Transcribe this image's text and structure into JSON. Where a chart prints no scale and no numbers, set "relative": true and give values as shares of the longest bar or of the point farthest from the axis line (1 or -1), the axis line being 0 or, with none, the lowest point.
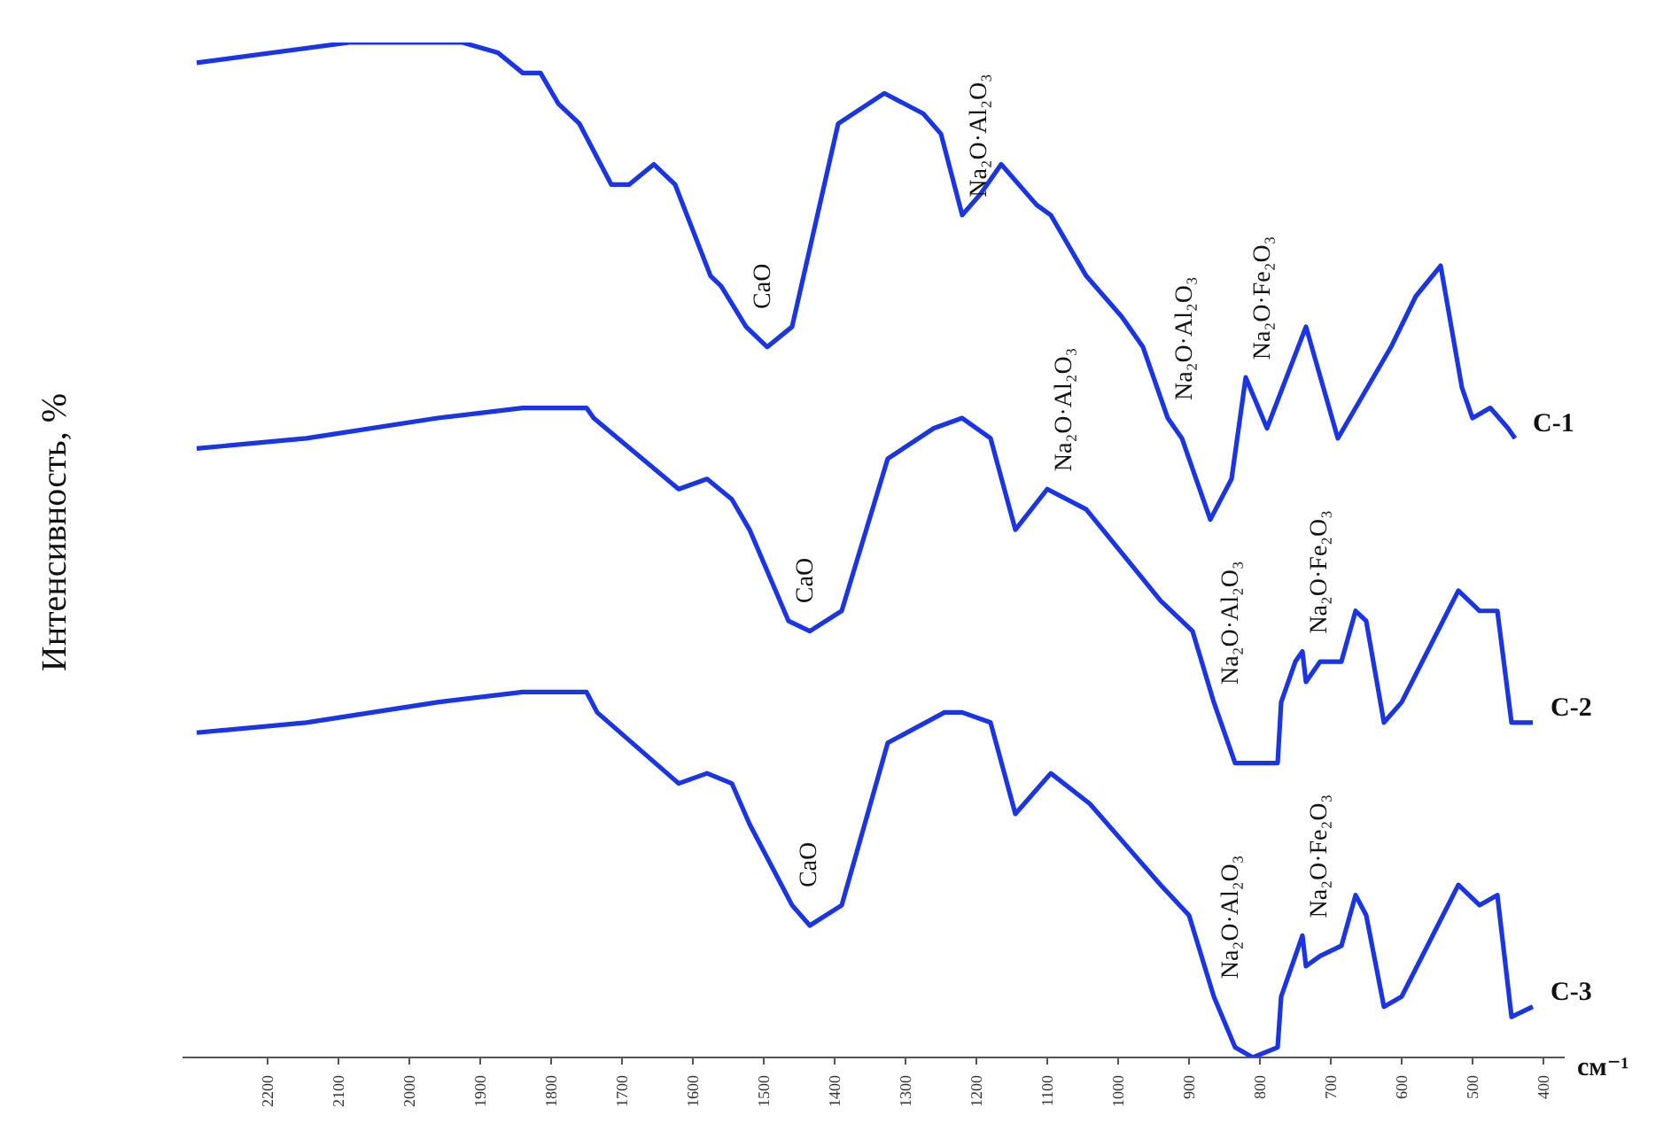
{
  "chart_data": {
    "type": "line",
    "relative": true,
    "ylabel": "Интенсивность, %",
    "xlabel": "см⁻¹",
    "xlim": [
      2320,
      370
    ],
    "xticks": [
      2200,
      2100,
      2000,
      1900,
      1800,
      1700,
      1600,
      1500,
      1400,
      1300,
      1200,
      1100,
      1000,
      900,
      800,
      700,
      600,
      500,
      400
    ],
    "grid": false,
    "legend": false,
    "marker": "none",
    "line_style": "solid",
    "series": [
      {
        "name": "C-1",
        "color": "#1a35e6",
        "x": [
          2300,
          2085,
          1925,
          1875,
          1840,
          1815,
          1790,
          1760,
          1715,
          1690,
          1655,
          1625,
          1575,
          1560,
          1525,
          1495,
          1460,
          1395,
          1330,
          1275,
          1250,
          1220,
          1195,
          1165,
          1115,
          1095,
          1045,
          995,
          965,
          930,
          910,
          890,
          870,
          840,
          820,
          790,
          735,
          690,
          615,
          580,
          545,
          515,
          500,
          475,
          450,
          440
        ],
        "values": [
          0.98,
          1.0,
          1.0,
          0.99,
          0.97,
          0.97,
          0.94,
          0.92,
          0.86,
          0.86,
          0.88,
          0.86,
          0.77,
          0.76,
          0.72,
          0.7,
          0.72,
          0.92,
          0.95,
          0.93,
          0.91,
          0.83,
          0.85,
          0.88,
          0.84,
          0.83,
          0.77,
          0.73,
          0.7,
          0.63,
          0.61,
          0.57,
          0.53,
          0.57,
          0.67,
          0.62,
          0.72,
          0.61,
          0.7,
          0.75,
          0.78,
          0.66,
          0.63,
          0.64,
          0.62,
          0.61
        ]
      },
      {
        "name": "C-2",
        "color": "#1a35e6",
        "x": [
          2300,
          2145,
          1960,
          1840,
          1750,
          1740,
          1620,
          1580,
          1545,
          1520,
          1465,
          1435,
          1390,
          1325,
          1260,
          1220,
          1180,
          1145,
          1100,
          1045,
          940,
          895,
          865,
          835,
          775,
          770,
          750,
          740,
          735,
          715,
          685,
          665,
          650,
          625,
          600,
          520,
          490,
          465,
          445,
          415
        ],
        "values": [
          0.6,
          0.61,
          0.63,
          0.64,
          0.64,
          0.63,
          0.56,
          0.57,
          0.55,
          0.52,
          0.43,
          0.42,
          0.44,
          0.59,
          0.62,
          0.63,
          0.61,
          0.52,
          0.56,
          0.54,
          0.45,
          0.42,
          0.35,
          0.29,
          0.29,
          0.35,
          0.39,
          0.4,
          0.37,
          0.39,
          0.39,
          0.44,
          0.43,
          0.33,
          0.35,
          0.46,
          0.44,
          0.44,
          0.33,
          0.33
        ]
      },
      {
        "name": "C-3",
        "color": "#1a35e6",
        "x": [
          2300,
          2145,
          1960,
          1840,
          1750,
          1735,
          1620,
          1580,
          1545,
          1520,
          1460,
          1435,
          1390,
          1325,
          1245,
          1220,
          1180,
          1145,
          1095,
          1040,
          940,
          900,
          865,
          835,
          810,
          775,
          770,
          750,
          740,
          735,
          715,
          685,
          665,
          650,
          625,
          600,
          520,
          490,
          465,
          445,
          415
        ],
        "values": [
          0.32,
          0.33,
          0.35,
          0.36,
          0.36,
          0.34,
          0.27,
          0.28,
          0.27,
          0.23,
          0.15,
          0.13,
          0.15,
          0.31,
          0.34,
          0.34,
          0.33,
          0.24,
          0.28,
          0.25,
          0.17,
          0.14,
          0.06,
          0.01,
          0,
          0.01,
          0.06,
          0.1,
          0.12,
          0.09,
          0.1,
          0.11,
          0.16,
          0.14,
          0.05,
          0.06,
          0.17,
          0.15,
          0.16,
          0.04,
          0.05
        ]
      }
    ],
    "annotations": [
      {
        "text": "CaO",
        "x": 1525,
        "y": 0.72
      },
      {
        "text": "Na₂O·Al₂O₃",
        "x": 1220,
        "y": 0.83
      },
      {
        "text": "Na₂O·Al₂O₃",
        "x": 1100,
        "y": 0.56
      },
      {
        "text": "Na₂O·Al₂O₃",
        "x": 930,
        "y": 0.63
      },
      {
        "text": "Na₂O·Fe₂O₃",
        "x": 820,
        "y": 0.67
      },
      {
        "text": "CaO",
        "x": 1465,
        "y": 0.43
      },
      {
        "text": "Na₂O·Al₂O₃",
        "x": 865,
        "y": 0.35
      },
      {
        "text": "Na₂O·Fe₂O₃",
        "x": 740,
        "y": 0.4
      },
      {
        "text": "CaO",
        "x": 1460,
        "y": 0.15
      },
      {
        "text": "Na₂O·Al₂O₃",
        "x": 865,
        "y": 0.06
      },
      {
        "text": "Na₂O·Fe₂O₃",
        "x": 740,
        "y": 0.12
      }
    ]
  }
}
